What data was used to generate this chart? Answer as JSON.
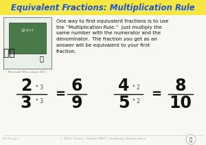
{
  "title": "Equivalent Fractions: Multiplication Rule",
  "title_color": "#2255cc",
  "bg_color": "#f8f8f2",
  "body_text": "One way to find equivalent fractions is to use\nthe “Multiplication Rule.”  Just multiply the\nsame number with the numerator and the\ndenominator.  The fraction you get as an\nanswer will be equivalent to your first\nfraction.",
  "footer_left": "8 | P a g e",
  "footer_center": "© 2003, Trista L.  Pollard, NBCT  Chadbourn Teacher Store",
  "frac1_num": "2",
  "frac1_den": "3",
  "frac1_mult_num": "* 3",
  "frac1_mult_den": "* 3",
  "frac1_res_num": "6",
  "frac1_res_den": "9",
  "frac2_num": "4",
  "frac2_den": "5",
  "frac2_mult_num": "* 2",
  "frac2_mult_den": "* 2",
  "frac2_res_num": "8",
  "frac2_res_den": "10",
  "line_color": "#111111",
  "text_color": "#111111",
  "small_mult_color": "#444444",
  "img_box_color": "#5a8a5a",
  "img_border_color": "#888888"
}
